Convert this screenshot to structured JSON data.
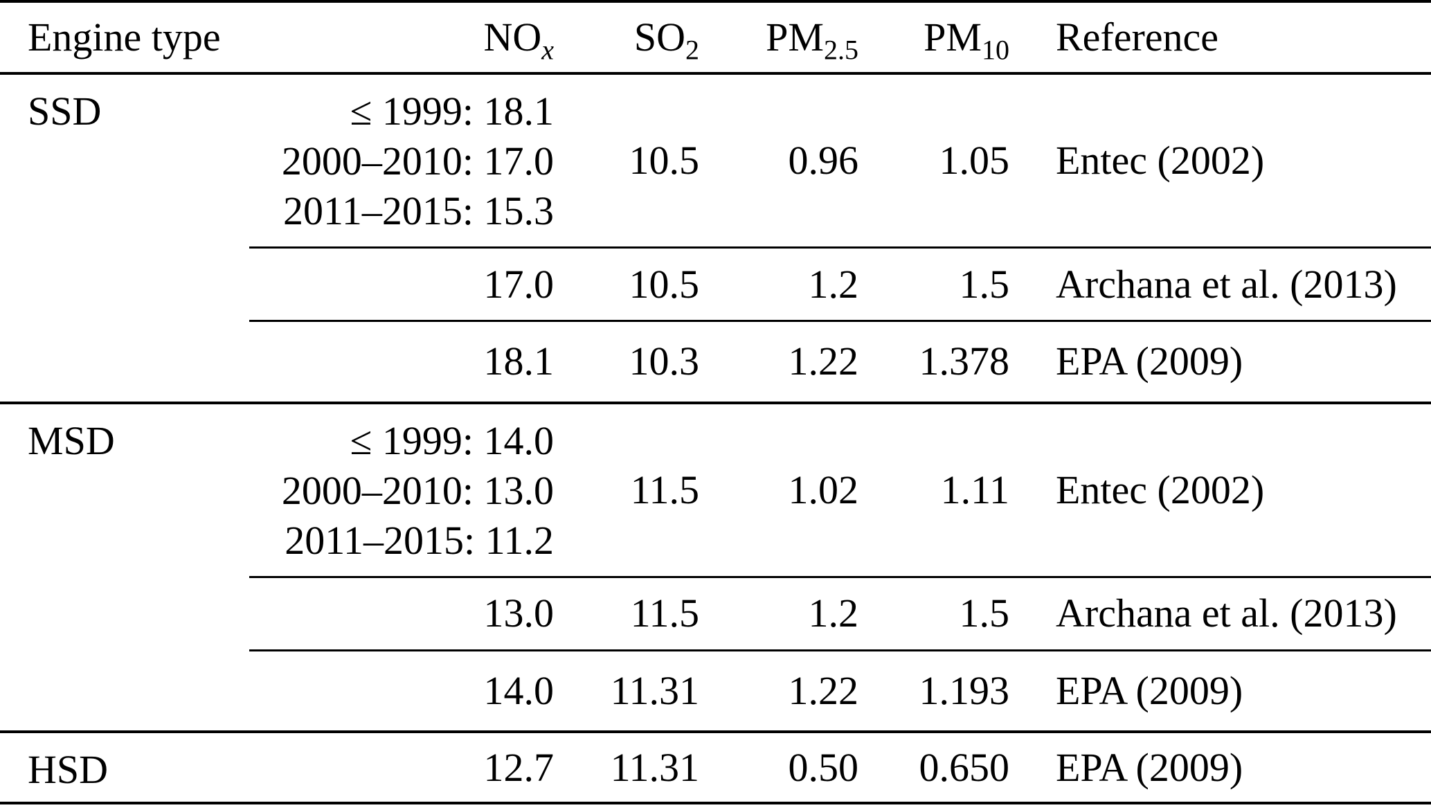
{
  "colors": {
    "background": "#ffffff",
    "text": "#000000",
    "rule": "#000000"
  },
  "table": {
    "columns": [
      {
        "label": "Engine type",
        "sub": ""
      },
      {
        "label": "NO",
        "sub": "x"
      },
      {
        "label": "SO",
        "sub": "2"
      },
      {
        "label": "PM",
        "sub": "2.5"
      },
      {
        "label": "PM",
        "sub": "10"
      },
      {
        "label": "Reference",
        "sub": ""
      }
    ],
    "groups": [
      {
        "engine": "SSD",
        "rows": [
          {
            "nox_lines": [
              "≤ 1999: 18.1",
              "2000–2010: 17.0",
              "2011–2015: 15.3"
            ],
            "so2": "10.5",
            "pm25": "0.96",
            "pm10": "1.05",
            "reference": "Entec (2002)"
          },
          {
            "nox": "17.0",
            "so2": "10.5",
            "pm25": "1.2",
            "pm10": "1.5",
            "reference": "Archana et al. (2013)"
          },
          {
            "nox": "18.1",
            "so2": "10.3",
            "pm25": "1.22",
            "pm10": "1.378",
            "reference": "EPA (2009)"
          }
        ]
      },
      {
        "engine": "MSD",
        "rows": [
          {
            "nox_lines": [
              "≤ 1999: 14.0",
              "2000–2010: 13.0",
              "2011–2015: 11.2"
            ],
            "so2": "11.5",
            "pm25": "1.02",
            "pm10": "1.11",
            "reference": "Entec (2002)"
          },
          {
            "nox": "13.0",
            "so2": "11.5",
            "pm25": "1.2",
            "pm10": "1.5",
            "reference": "Archana et al. (2013)"
          },
          {
            "nox": "14.0",
            "so2": "11.31",
            "pm25": "1.22",
            "pm10": "1.193",
            "reference": "EPA (2009)"
          }
        ]
      },
      {
        "engine": "HSD",
        "rows": [
          {
            "nox": "12.7",
            "so2": "11.31",
            "pm25": "0.50",
            "pm10": "0.650",
            "reference": "EPA (2009)"
          }
        ]
      }
    ]
  }
}
